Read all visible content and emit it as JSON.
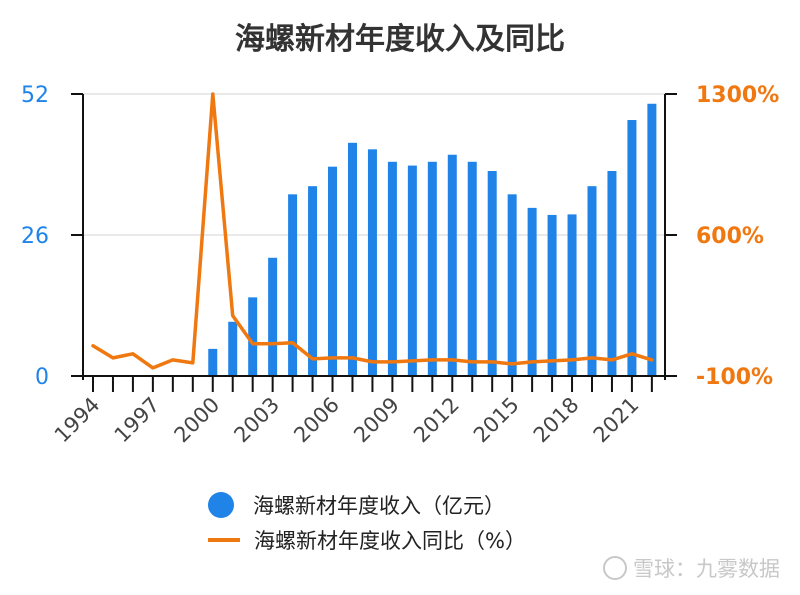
{
  "chart_data": {
    "type": "bar",
    "title": "海螺新材年度收入及同比",
    "categories": [
      1994,
      1995,
      1996,
      1997,
      1998,
      1999,
      2000,
      2001,
      2002,
      2003,
      2004,
      2005,
      2006,
      2007,
      2008,
      2009,
      2010,
      2011,
      2012,
      2013,
      2014,
      2015,
      2016,
      2017,
      2018,
      2019,
      2020,
      2021,
      2022
    ],
    "x_tick_labels": [
      "1994",
      "1997",
      "2000",
      "2003",
      "2006",
      "2009",
      "2012",
      "2015",
      "2018",
      "2021"
    ],
    "series": [
      {
        "name": "海螺新材年度收入（亿元）",
        "type": "bar",
        "axis": "left",
        "color": "#1f83e8",
        "values": [
          null,
          null,
          null,
          null,
          null,
          null,
          5.0,
          10.0,
          14.5,
          21.8,
          33.5,
          35.0,
          38.6,
          43.0,
          41.8,
          39.5,
          38.8,
          39.5,
          40.8,
          39.5,
          37.8,
          33.5,
          31.0,
          29.7,
          29.8,
          35.0,
          37.8,
          47.2,
          50.2
        ]
      },
      {
        "name": "海螺新材年度收入同比（%）",
        "type": "line",
        "axis": "right",
        "color": "#f07810",
        "values": [
          50,
          -10,
          10,
          -60,
          -20,
          -35,
          1300,
          200,
          60,
          60,
          65,
          -15,
          -10,
          -10,
          -30,
          -30,
          -25,
          -20,
          -20,
          -30,
          -30,
          -40,
          -30,
          -25,
          -20,
          -10,
          -20,
          10,
          -20
        ]
      }
    ],
    "y_left": {
      "ticks": [
        "0",
        "26",
        "52"
      ],
      "ylim": [
        0,
        52
      ],
      "color": "#1f83e8"
    },
    "y_right": {
      "ticks": [
        "-100%",
        "600%",
        "1300%"
      ],
      "ylim": [
        -100,
        1300
      ],
      "color": "#f07810"
    },
    "grid": true,
    "legend_position": "bottom"
  },
  "watermark": "雪球：九雾数据"
}
